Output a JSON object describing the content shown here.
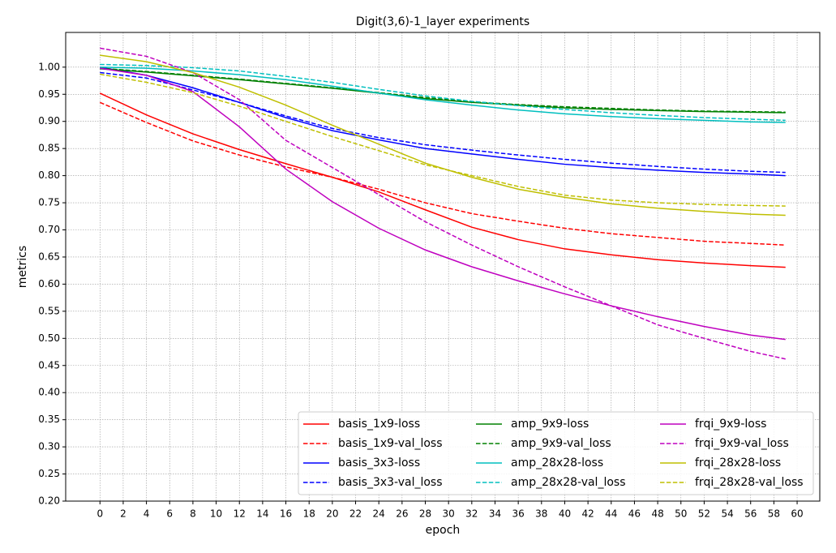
{
  "chart_data": {
    "type": "line",
    "title": "Digit(3,6)-1_layer experiments",
    "x_label": "epoch",
    "y_label": "metrics",
    "x": [
      0,
      4,
      8,
      12,
      16,
      20,
      24,
      28,
      32,
      36,
      40,
      44,
      48,
      52,
      56,
      59
    ],
    "xlim": [
      -2.95,
      61.95
    ],
    "xticks": [
      0,
      2,
      4,
      6,
      8,
      10,
      12,
      14,
      16,
      18,
      20,
      22,
      24,
      26,
      28,
      30,
      32,
      34,
      36,
      38,
      40,
      42,
      44,
      46,
      48,
      50,
      52,
      54,
      56,
      58,
      60
    ],
    "ylim": [
      0.2,
      1.064
    ],
    "yticks": [
      {
        "value": 0.2,
        "label": "0.20"
      },
      0.25,
      {
        "value": 0.3,
        "label": "0.30"
      },
      0.35,
      {
        "value": 0.4,
        "label": "0.40"
      },
      0.45,
      {
        "value": 0.5,
        "label": "0.50"
      },
      0.55,
      {
        "value": 0.6,
        "label": "0.60"
      },
      0.65,
      {
        "value": 0.7,
        "label": "0.70"
      },
      0.75,
      {
        "value": 0.8,
        "label": "0.80"
      },
      0.85,
      {
        "value": 0.9,
        "label": "0.90"
      },
      0.95,
      {
        "value": 1.0,
        "label": "1.00"
      }
    ],
    "grid": true,
    "legend": "lower right",
    "series": [
      {
        "name": "basis_1x9-loss",
        "color": "#ff0000",
        "linestyle": "solid",
        "values": [
          0.952,
          0.912,
          0.877,
          0.848,
          0.822,
          0.797,
          0.77,
          0.737,
          0.705,
          0.682,
          0.665,
          0.654,
          0.645,
          0.639,
          0.634,
          0.631
        ]
      },
      {
        "name": "basis_1x9-val_loss",
        "color": "#ff0000",
        "linestyle": "dashed",
        "values": [
          0.935,
          0.898,
          0.864,
          0.838,
          0.816,
          0.797,
          0.775,
          0.75,
          0.73,
          0.716,
          0.703,
          0.693,
          0.686,
          0.679,
          0.675,
          0.672
        ]
      },
      {
        "name": "basis_3x3-loss",
        "color": "#0000ff",
        "linestyle": "solid",
        "values": [
          1.0,
          0.985,
          0.962,
          0.935,
          0.907,
          0.883,
          0.866,
          0.85,
          0.84,
          0.83,
          0.821,
          0.815,
          0.81,
          0.806,
          0.803,
          0.8
        ]
      },
      {
        "name": "basis_3x3-val_loss",
        "color": "#0000ff",
        "linestyle": "dashed",
        "values": [
          0.99,
          0.98,
          0.958,
          0.935,
          0.91,
          0.887,
          0.87,
          0.857,
          0.847,
          0.838,
          0.83,
          0.823,
          0.817,
          0.812,
          0.808,
          0.806
        ]
      },
      {
        "name": "amp_9x9-loss",
        "color": "#008000",
        "linestyle": "solid",
        "values": [
          0.997,
          0.991,
          0.984,
          0.977,
          0.969,
          0.961,
          0.952,
          0.942,
          0.935,
          0.93,
          0.925,
          0.922,
          0.92,
          0.918,
          0.917,
          0.916
        ]
      },
      {
        "name": "amp_9x9-val_loss",
        "color": "#008000",
        "linestyle": "dashed",
        "values": [
          0.998,
          0.992,
          0.985,
          0.978,
          0.97,
          0.962,
          0.953,
          0.944,
          0.936,
          0.931,
          0.927,
          0.924,
          0.921,
          0.919,
          0.918,
          0.917
        ]
      },
      {
        "name": "amp_28x28-loss",
        "color": "#00bfbf",
        "linestyle": "solid",
        "values": [
          1.0,
          0.998,
          0.993,
          0.986,
          0.977,
          0.965,
          0.952,
          0.94,
          0.93,
          0.921,
          0.914,
          0.909,
          0.905,
          0.902,
          0.899,
          0.898
        ]
      },
      {
        "name": "amp_28x28-val_loss",
        "color": "#00bfbf",
        "linestyle": "dashed",
        "values": [
          1.005,
          1.003,
          0.999,
          0.993,
          0.983,
          0.972,
          0.959,
          0.947,
          0.937,
          0.929,
          0.922,
          0.916,
          0.911,
          0.907,
          0.904,
          0.902
        ]
      },
      {
        "name": "frqi_9x9-loss",
        "color": "#bf00bf",
        "linestyle": "solid",
        "values": [
          0.998,
          0.985,
          0.955,
          0.89,
          0.812,
          0.752,
          0.703,
          0.663,
          0.632,
          0.606,
          0.582,
          0.56,
          0.54,
          0.522,
          0.506,
          0.498
        ]
      },
      {
        "name": "frqi_9x9-val_loss",
        "color": "#bf00bf",
        "linestyle": "dashed",
        "values": [
          1.035,
          1.02,
          0.99,
          0.94,
          0.865,
          0.815,
          0.765,
          0.715,
          0.672,
          0.632,
          0.595,
          0.56,
          0.525,
          0.5,
          0.476,
          0.462
        ]
      },
      {
        "name": "frqi_28x28-loss",
        "color": "#bfbf00",
        "linestyle": "solid",
        "values": [
          1.022,
          1.01,
          0.99,
          0.963,
          0.93,
          0.893,
          0.858,
          0.823,
          0.797,
          0.775,
          0.76,
          0.748,
          0.74,
          0.734,
          0.729,
          0.727
        ]
      },
      {
        "name": "frqi_28x28-val_loss",
        "color": "#bfbf00",
        "linestyle": "dashed",
        "values": [
          0.987,
          0.972,
          0.953,
          0.928,
          0.9,
          0.872,
          0.846,
          0.82,
          0.8,
          0.78,
          0.764,
          0.755,
          0.75,
          0.747,
          0.745,
          0.744
        ]
      }
    ]
  }
}
